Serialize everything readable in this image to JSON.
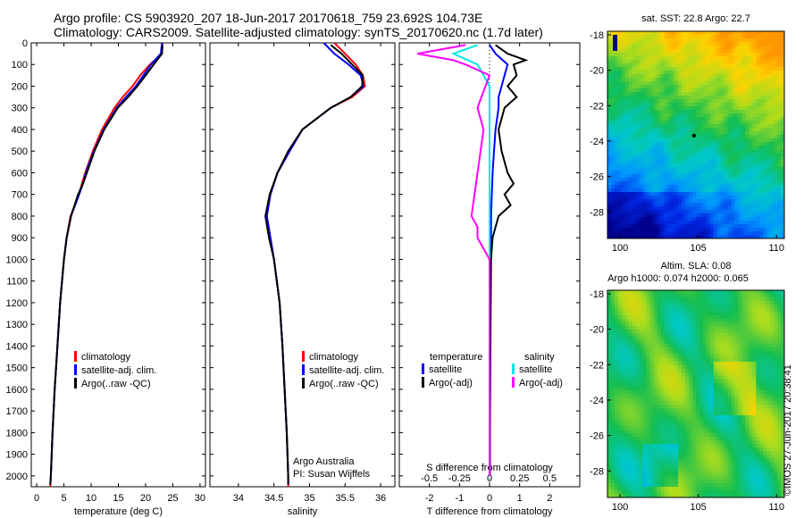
{
  "header": {
    "line1": "Argo profile: CS 5903920_207 18-Jun-2017 20170618_759 23.692S 104.73E",
    "line2": "Climatology: CARS2009. Satellite-adjusted climatology: synTS_20170620.nc (1.7d later)"
  },
  "stamp": "©IMOS 27-Jun-2017 20:38:41",
  "colors": {
    "climatology": "#ff0000",
    "satellite": "#0000ff",
    "argo": "#000000",
    "salinity_sat": "#00e5e5",
    "salinity_argo": "#ff00ff"
  },
  "chart_data": [
    {
      "id": "temperature",
      "type": "line",
      "xlabel": "temperature (deg C)",
      "ylabel": "",
      "xlim": [
        -1,
        31
      ],
      "ylim": [
        2050,
        0
      ],
      "xticks": [
        0,
        5,
        10,
        15,
        20,
        25,
        30
      ],
      "yticks": [
        0,
        100,
        200,
        300,
        400,
        500,
        600,
        700,
        800,
        900,
        1000,
        1100,
        1200,
        1300,
        1400,
        1500,
        1600,
        1700,
        1800,
        1900,
        2000
      ],
      "legend": [
        "climatology",
        "satellite-adj. clim.",
        "Argo(..raw -QC)"
      ],
      "series": [
        {
          "name": "climatology",
          "color": "#ff0000",
          "depth": [
            0,
            50,
            100,
            150,
            200,
            250,
            300,
            400,
            500,
            600,
            650,
            700,
            800,
            900,
            1000,
            1200,
            1400,
            1600,
            1800,
            2000,
            2050
          ],
          "values": [
            23.1,
            23.0,
            20.8,
            19.0,
            17.6,
            15.8,
            14.3,
            12.0,
            10.3,
            8.9,
            8.3,
            7.8,
            6.2,
            5.5,
            5.0,
            4.3,
            3.8,
            3.3,
            2.9,
            2.6,
            2.5
          ]
        },
        {
          "name": "satellite-adj. clim.",
          "color": "#0000ff",
          "depth": [
            0,
            50,
            100,
            150,
            200,
            250,
            300,
            400,
            500,
            600,
            650,
            700,
            800,
            900,
            1000,
            1200,
            1400,
            1600,
            1800,
            2000,
            2040
          ],
          "values": [
            23.0,
            22.8,
            21.0,
            19.6,
            18.2,
            16.4,
            14.7,
            12.3,
            10.5,
            9.0,
            8.5,
            7.8,
            6.3,
            5.5,
            5.0,
            4.3,
            3.8,
            3.3,
            2.9,
            2.6,
            2.5
          ]
        },
        {
          "name": "Argo(..raw -QC)",
          "color": "#000000",
          "depth": [
            10,
            50,
            100,
            150,
            200,
            250,
            300,
            400,
            500,
            600,
            650,
            700,
            800,
            900,
            1000,
            1200,
            1400,
            1600,
            1800,
            2000,
            2040
          ],
          "values": [
            23.1,
            23.0,
            21.5,
            20.0,
            18.5,
            16.8,
            14.9,
            12.4,
            10.6,
            9.2,
            8.5,
            7.6,
            6.3,
            5.5,
            5.0,
            4.3,
            3.8,
            3.3,
            2.9,
            2.6,
            2.5
          ]
        }
      ]
    },
    {
      "id": "salinity",
      "type": "line",
      "xlabel": "salinity",
      "xlim": [
        33.6,
        36.2
      ],
      "ylim": [
        2050,
        0
      ],
      "xticks": [
        34,
        34.5,
        35,
        35.5,
        36
      ],
      "legend": [
        "climatology",
        "satellite-adj. clim.",
        "Argo(..raw -QC)"
      ],
      "annotation": [
        "Argo Australia",
        "PI: Susan Wijffels"
      ],
      "series": [
        {
          "name": "climatology",
          "color": "#ff0000",
          "depth": [
            0,
            50,
            100,
            150,
            200,
            250,
            300,
            400,
            500,
            600,
            700,
            800,
            900,
            1000,
            1200,
            1400,
            1600,
            1800,
            2000,
            2050
          ],
          "values": [
            35.35,
            35.5,
            35.65,
            35.75,
            35.78,
            35.6,
            35.3,
            34.9,
            34.72,
            34.55,
            34.45,
            34.4,
            34.45,
            34.5,
            34.58,
            34.62,
            34.65,
            34.68,
            34.7,
            34.7
          ]
        },
        {
          "name": "satellite-adj. clim.",
          "color": "#0000ff",
          "depth": [
            0,
            50,
            100,
            150,
            200,
            250,
            300,
            400,
            500,
            600,
            700,
            800,
            900,
            1000,
            1200,
            1400,
            1600,
            1800,
            2000,
            2040
          ],
          "values": [
            35.2,
            35.35,
            35.55,
            35.72,
            35.76,
            35.58,
            35.3,
            34.9,
            34.72,
            34.55,
            34.45,
            34.4,
            34.45,
            34.5,
            34.58,
            34.62,
            34.65,
            34.68,
            34.7,
            34.7
          ]
        },
        {
          "name": "Argo(..raw -QC)",
          "color": "#000000",
          "depth": [
            10,
            50,
            100,
            150,
            200,
            250,
            300,
            400,
            500,
            600,
            700,
            800,
            900,
            1000,
            1200,
            1400,
            1600,
            1800,
            2000,
            2040
          ],
          "values": [
            35.3,
            35.45,
            35.6,
            35.75,
            35.74,
            35.58,
            35.3,
            34.9,
            34.7,
            34.55,
            34.44,
            34.38,
            34.43,
            34.5,
            34.58,
            34.62,
            34.65,
            34.68,
            34.7,
            34.7
          ]
        }
      ]
    },
    {
      "id": "difference",
      "type": "line",
      "xlabel": "T difference from climatology",
      "xlabel_top": "S difference from climatology",
      "xlim": [
        -3,
        3
      ],
      "ylim": [
        2050,
        0
      ],
      "xticks": [
        -2,
        -1,
        0,
        1,
        2
      ],
      "xticks_top": [
        -0.5,
        -0.25,
        0,
        0.25,
        0.5
      ],
      "legend_temperature": [
        "temperature",
        "satellite",
        "Argo(-adj)"
      ],
      "legend_salinity": [
        "salinity",
        "satellite",
        "Argo(-adj)"
      ],
      "series": [
        {
          "name": "temperature satellite",
          "color": "#0000ff",
          "depth": [
            10,
            50,
            100,
            150,
            200,
            250,
            300,
            400,
            500,
            600,
            800,
            900,
            1000,
            1500,
            2000
          ],
          "values": [
            0.0,
            0.2,
            0.6,
            0.5,
            0.4,
            0.3,
            0.3,
            0.2,
            0.15,
            0.1,
            0.05,
            0.05,
            0.03,
            0.02,
            0.01
          ]
        },
        {
          "name": "temperature Argo(-adj)",
          "color": "#000000",
          "depth": [
            10,
            50,
            80,
            100,
            150,
            200,
            250,
            300,
            400,
            500,
            600,
            650,
            700,
            750,
            800,
            900,
            1000,
            1500,
            2000
          ],
          "values": [
            0.2,
            0.6,
            1.2,
            0.8,
            0.9,
            0.6,
            0.9,
            0.5,
            0.3,
            0.4,
            0.6,
            0.8,
            0.5,
            0.7,
            0.3,
            0.1,
            0.05,
            0.02,
            0.01
          ]
        },
        {
          "name": "salinity satellite",
          "color": "#00e5e5",
          "depth": [
            10,
            50,
            100,
            150,
            200,
            300,
            500,
            800,
            1000,
            1500,
            2000
          ],
          "values": [
            -0.1,
            -0.3,
            -0.1,
            -0.05,
            0.0,
            0.0,
            0.0,
            0.0,
            0.0,
            0.0,
            0.0
          ]
        },
        {
          "name": "salinity Argo(-adj)",
          "color": "#ff00ff",
          "depth": [
            10,
            50,
            80,
            100,
            150,
            300,
            400,
            800,
            850,
            900,
            1000,
            1500,
            2000
          ],
          "values": [
            -0.2,
            -0.6,
            -0.3,
            -0.2,
            0.0,
            -0.1,
            -0.05,
            -0.15,
            -0.1,
            -0.1,
            0.0,
            0.0,
            0.0
          ]
        }
      ]
    },
    {
      "id": "sst-map",
      "type": "heatmap",
      "title": "sat. SST: 22.8  Argo: 22.7",
      "xlim": [
        99.2,
        110.5
      ],
      "ylim": [
        -29.5,
        -17.8
      ],
      "xticks": [
        100,
        105,
        110
      ],
      "yticks": [
        -18,
        -20,
        -22,
        -24,
        -26,
        -28
      ],
      "argo_position": [
        104.73,
        -23.692
      ]
    },
    {
      "id": "sla-map",
      "type": "heatmap",
      "title": "Altim. SLA: 0.08",
      "subtitle": "Argo h1000: 0.074  h2000: 0.065",
      "xlim": [
        99.2,
        110.5
      ],
      "ylim": [
        -29.5,
        -17.8
      ],
      "xticks": [
        100,
        105,
        110
      ],
      "yticks": [
        -18,
        -20,
        -22,
        -24,
        -26,
        -28
      ]
    }
  ]
}
